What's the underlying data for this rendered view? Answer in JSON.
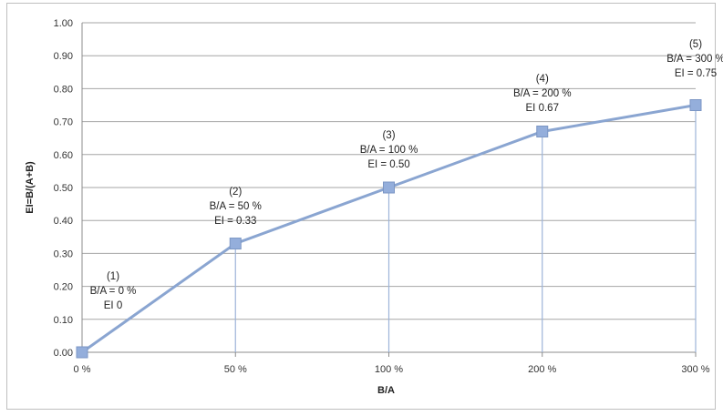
{
  "chart_data": {
    "type": "line",
    "title": "",
    "xlabel": "B/A",
    "ylabel": "EI=B/(A+B)",
    "ylim": [
      0,
      1
    ],
    "yticks": [
      "0.00",
      "0.10",
      "0.20",
      "0.30",
      "0.40",
      "0.50",
      "0.60",
      "0.70",
      "0.80",
      "0.90",
      "1.00"
    ],
    "categories": [
      "0 %",
      "50 %",
      "100 %",
      "200 %",
      "300 %"
    ],
    "series": [
      {
        "values": [
          0,
          0.33,
          0.5,
          0.67,
          0.75
        ]
      }
    ],
    "annotations": [
      {
        "n": "(1)",
        "ratio": "B/A = 0 %",
        "ei": "EI   0"
      },
      {
        "n": "(2)",
        "ratio": "B/A = 50 %",
        "ei": "EI = 0.33"
      },
      {
        "n": "(3)",
        "ratio": "B/A = 100 %",
        "ei": "EI = 0.50"
      },
      {
        "n": "(4)",
        "ratio": "B/A = 200 %",
        "ei": "EI   0.67"
      },
      {
        "n": "(5)",
        "ratio": "B/A = 300 %",
        "ei": "EI = 0.75"
      }
    ],
    "grid": "horizontal",
    "colors": {
      "line": "#8aa5d1",
      "marker": "#94aedb",
      "marker_border": "#7b96c4",
      "dropline": "#9db4d9",
      "grid": "#a6a6a6"
    }
  }
}
